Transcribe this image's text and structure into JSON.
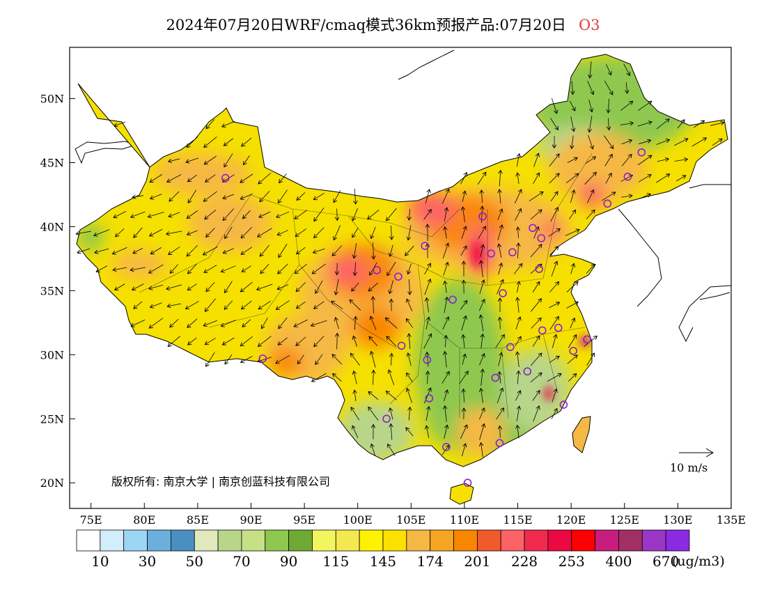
{
  "title": {
    "text": "2024年07月20日WRF/cmaq模式36km预报产品:07月20日",
    "species": "O3"
  },
  "map": {
    "lat_ticks": [
      "50N",
      "45N",
      "40N",
      "35N",
      "30N",
      "25N",
      "20N"
    ],
    "lon_ticks": [
      "75E",
      "80E",
      "85E",
      "90E",
      "95E",
      "100E",
      "105E",
      "110E",
      "115E",
      "120E",
      "125E",
      "130E",
      "135E"
    ],
    "copyright": "版权所有: 南京大学 | 南京创蓝科技有限公司",
    "wind_scale_label": "10  m/s",
    "colors": {
      "land_base": "#f5e000",
      "ocean": "#ffffff",
      "border": "#000000"
    }
  },
  "colorbar": {
    "colors": [
      "#ffffff",
      "#d2edfb",
      "#9dd6f4",
      "#6bb0dc",
      "#4a8fc2",
      "#dfe9bd",
      "#b8d58a",
      "#c5e085",
      "#8ec850",
      "#6eaa33",
      "#f2f55e",
      "#f4e850",
      "#fef200",
      "#fbe100",
      "#f6b845",
      "#f5a523",
      "#f98600",
      "#f15a2b",
      "#fd6266",
      "#f12a4d",
      "#ec0843",
      "#fe0000",
      "#c81d7f",
      "#a22f63",
      "#9b37c6",
      "#8a2be2"
    ],
    "labels": [
      "10",
      "30",
      "50",
      "70",
      "90",
      "115",
      "145",
      "174",
      "201",
      "228",
      "253",
      "400",
      "670"
    ],
    "unit": "(ug/m3)"
  },
  "stations": [
    {
      "lon": 87.6,
      "lat": 43.8
    },
    {
      "lon": 91.1,
      "lat": 29.7
    },
    {
      "lon": 101.8,
      "lat": 36.6
    },
    {
      "lon": 103.8,
      "lat": 36.1
    },
    {
      "lon": 106.3,
      "lat": 38.5
    },
    {
      "lon": 111.7,
      "lat": 40.8
    },
    {
      "lon": 112.5,
      "lat": 37.9
    },
    {
      "lon": 114.5,
      "lat": 38.0
    },
    {
      "lon": 116.4,
      "lat": 39.9
    },
    {
      "lon": 117.2,
      "lat": 39.1
    },
    {
      "lon": 117.0,
      "lat": 36.7
    },
    {
      "lon": 113.6,
      "lat": 34.8
    },
    {
      "lon": 108.9,
      "lat": 34.3
    },
    {
      "lon": 104.1,
      "lat": 30.7
    },
    {
      "lon": 106.5,
      "lat": 29.6
    },
    {
      "lon": 106.7,
      "lat": 26.6
    },
    {
      "lon": 102.7,
      "lat": 25.0
    },
    {
      "lon": 108.3,
      "lat": 22.8
    },
    {
      "lon": 113.3,
      "lat": 23.1
    },
    {
      "lon": 110.3,
      "lat": 20.0
    },
    {
      "lon": 112.9,
      "lat": 28.2
    },
    {
      "lon": 114.3,
      "lat": 30.6
    },
    {
      "lon": 115.9,
      "lat": 28.7
    },
    {
      "lon": 117.3,
      "lat": 31.9
    },
    {
      "lon": 118.8,
      "lat": 32.1
    },
    {
      "lon": 120.2,
      "lat": 30.3
    },
    {
      "lon": 121.5,
      "lat": 31.2
    },
    {
      "lon": 119.3,
      "lat": 26.1
    },
    {
      "lon": 123.4,
      "lat": 41.8
    },
    {
      "lon": 125.3,
      "lat": 43.9
    },
    {
      "lon": 126.6,
      "lat": 45.8
    }
  ]
}
